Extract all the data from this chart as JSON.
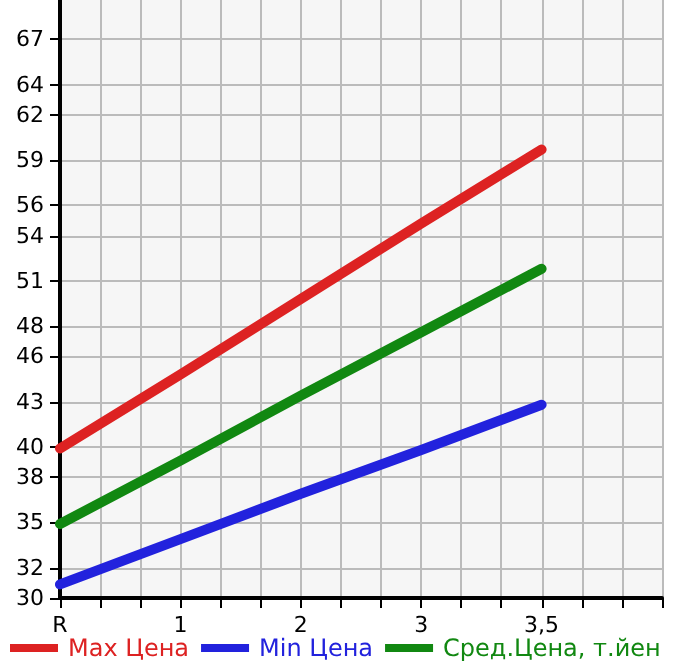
{
  "chart_data": {
    "type": "line",
    "categories": [
      "R",
      "1",
      "2",
      "3",
      "3,5",
      null
    ],
    "series": [
      {
        "name": "Max Цена",
        "color": "#dd2222",
        "values": [
          39.9,
          44.8,
          49.8,
          54.8,
          59.7,
          null
        ]
      },
      {
        "name": "Min Цена",
        "color": "#2222dd",
        "values": [
          30.9,
          33.9,
          36.9,
          39.8,
          42.8,
          null
        ]
      },
      {
        "name": "Сред.Цена, т.йен",
        "color": "#118811",
        "values": [
          34.9,
          39.1,
          43.4,
          47.6,
          51.8,
          null
        ]
      }
    ],
    "ylim": [
      30,
      69.6
    ],
    "yticks": [
      30,
      32,
      35,
      38,
      40,
      43,
      46,
      48,
      51,
      54,
      56,
      59,
      62,
      64,
      67
    ],
    "grid": true,
    "legend": "bottom left",
    "marker": "none",
    "line_style": "solid"
  }
}
